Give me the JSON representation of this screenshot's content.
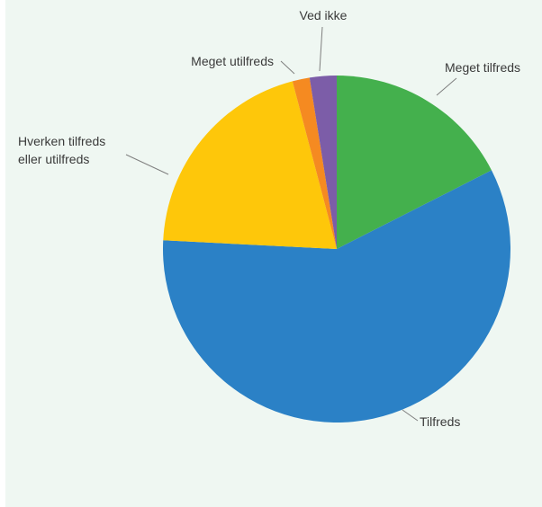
{
  "chart_data": {
    "type": "pie",
    "start": "top",
    "direction": "clockwise",
    "grid": false,
    "legend": "none",
    "slices": [
      {
        "label": "Meget tilfreds",
        "value": 17.5,
        "color": "#44b04d"
      },
      {
        "label": "Tilfreds",
        "value": 58.3,
        "color": "#2b81c6"
      },
      {
        "label": "Hverken tilfreds eller utilfreds",
        "label_lines": [
          "Hverken tilfreds",
          "eller utilfreds"
        ],
        "value": 20.1,
        "color": "#fec70a"
      },
      {
        "label": "Meget utilfreds",
        "value": 1.6,
        "color": "#f58a21"
      },
      {
        "label": "Ved ikke",
        "value": 2.5,
        "color": "#7c5da8"
      }
    ]
  },
  "colors": {
    "background": "#eff7f2",
    "label_text": "#3a3a3a",
    "leader_line": "#7f7f7f"
  }
}
